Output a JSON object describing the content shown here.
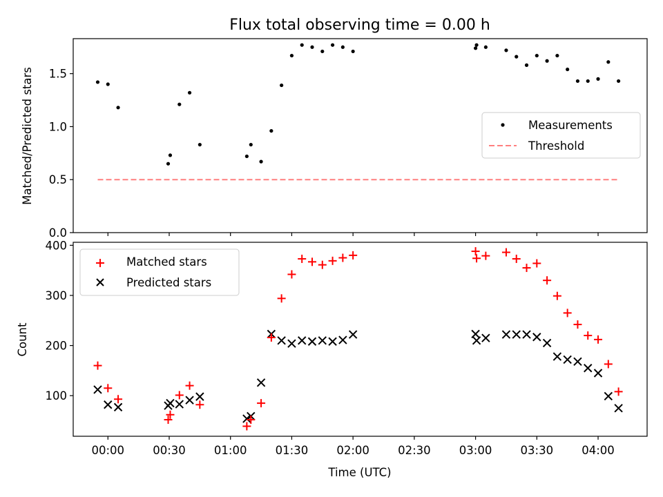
{
  "chart_data": [
    {
      "type": "scatter",
      "title": "Flux total observing time = 0.00 h",
      "xlabel": "",
      "ylabel": "Matched/Predicted stars",
      "ylim": [
        0,
        1.83
      ],
      "yticks": [
        "0.0",
        "0.5",
        "1.0",
        "1.5"
      ],
      "ytick_values": [
        0,
        0.5,
        1.0,
        1.5
      ],
      "legend_position": "center-right",
      "series": [
        {
          "name": "Measurements",
          "marker": "dot",
          "color": "#000000",
          "x": [
            -5,
            0,
            5,
            29.5,
            30.5,
            35,
            40,
            45,
            68,
            70,
            75,
            80,
            85,
            90,
            95,
            100,
            105,
            110,
            115,
            120,
            180,
            180.5,
            185,
            195,
            200,
            205,
            210,
            215,
            220,
            225,
            230,
            235,
            240,
            245,
            250
          ],
          "y": [
            1.42,
            1.4,
            1.18,
            0.65,
            0.73,
            1.21,
            1.32,
            0.83,
            0.72,
            0.83,
            0.67,
            0.96,
            1.39,
            1.67,
            1.77,
            1.75,
            1.71,
            1.77,
            1.75,
            1.71,
            1.74,
            1.77,
            1.75,
            1.72,
            1.66,
            1.58,
            1.67,
            1.62,
            1.67,
            1.54,
            1.43,
            1.43,
            1.45,
            1.61,
            1.43
          ]
        },
        {
          "name": "Threshold",
          "style": "dashed",
          "color": "#ff7f7f",
          "x": [
            -5,
            250
          ],
          "y": [
            0.5,
            0.5
          ]
        }
      ]
    },
    {
      "type": "scatter",
      "title": "",
      "xlabel": "Time (UTC)",
      "ylabel": "Count",
      "xlim": [
        -17,
        264
      ],
      "ylim": [
        19,
        406
      ],
      "xticks": [
        "00:00",
        "00:30",
        "01:00",
        "01:30",
        "02:00",
        "02:30",
        "03:00",
        "03:30",
        "04:00"
      ],
      "xtick_values": [
        0,
        30,
        60,
        90,
        120,
        150,
        180,
        210,
        240
      ],
      "xtick_unit": "minutes after 00:00 UTC",
      "yticks": [
        "100",
        "200",
        "300",
        "400"
      ],
      "ytick_values": [
        100,
        200,
        300,
        400
      ],
      "legend_position": "top-left",
      "series": [
        {
          "name": "Matched stars",
          "marker": "plus",
          "color": "#ff0000",
          "x": [
            -5,
            0,
            5,
            29.5,
            30.5,
            35,
            40,
            45,
            68,
            70,
            75,
            80,
            85,
            90,
            95,
            100,
            105,
            110,
            115,
            120,
            180,
            180.5,
            185,
            195,
            200,
            205,
            210,
            215,
            220,
            225,
            230,
            235,
            240,
            245,
            250
          ],
          "y": [
            160,
            115,
            93,
            52,
            62,
            101,
            120,
            82,
            39,
            52,
            85,
            216,
            294,
            342,
            373,
            367,
            361,
            369,
            375,
            380,
            388,
            374,
            379,
            386,
            373,
            355,
            364,
            330,
            299,
            265,
            242,
            220,
            212,
            163,
            108
          ]
        },
        {
          "name": "Predicted stars",
          "marker": "x",
          "color": "#000000",
          "x": [
            -5,
            0,
            5,
            29.5,
            30.5,
            35,
            40,
            45,
            68,
            70,
            75,
            80,
            85,
            90,
            95,
            100,
            105,
            110,
            115,
            120,
            180,
            180.5,
            185,
            195,
            200,
            205,
            210,
            215,
            220,
            225,
            230,
            235,
            240,
            245,
            250
          ],
          "y": [
            112,
            82,
            77,
            80,
            85,
            83,
            91,
            98,
            54,
            59,
            126,
            223,
            210,
            204,
            210,
            208,
            210,
            208,
            211,
            222,
            223,
            210,
            215,
            222,
            222,
            222,
            217,
            205,
            178,
            172,
            168,
            155,
            145,
            99,
            75
          ]
        }
      ]
    }
  ]
}
